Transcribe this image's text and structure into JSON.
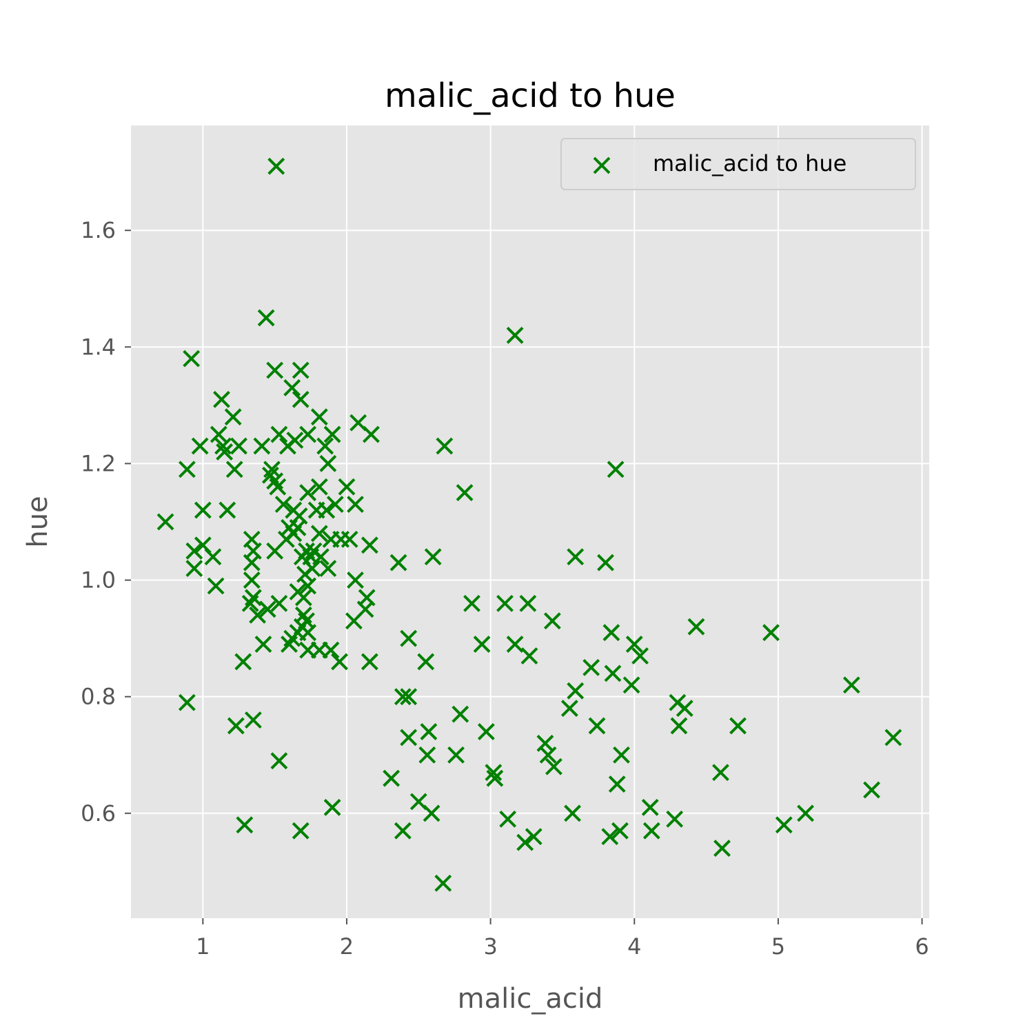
{
  "chart_data": {
    "type": "scatter",
    "title": "malic_acid to hue",
    "xlabel": "malic_acid",
    "ylabel": "hue",
    "xlim": [
      0.5,
      6.05
    ],
    "ylim": [
      0.42,
      1.78
    ],
    "xticks": [
      1,
      2,
      3,
      4,
      5,
      6
    ],
    "xtick_labels": [
      "1",
      "2",
      "3",
      "4",
      "5",
      "6"
    ],
    "yticks": [
      0.6,
      0.8,
      1.0,
      1.2,
      1.4,
      1.6
    ],
    "ytick_labels": [
      "0.6",
      "0.8",
      "1.0",
      "1.2",
      "1.4",
      "1.6"
    ],
    "grid": true,
    "legend_position": "top-right",
    "marker": "x",
    "series": [
      {
        "name": "malic_acid to hue",
        "color": "#008000",
        "points": [
          [
            1.51,
            1.71
          ],
          [
            1.44,
            1.45
          ],
          [
            3.17,
            1.42
          ],
          [
            0.92,
            1.38
          ],
          [
            1.5,
            1.36
          ],
          [
            1.68,
            1.36
          ],
          [
            1.62,
            1.33
          ],
          [
            1.13,
            1.31
          ],
          [
            1.68,
            1.31
          ],
          [
            1.21,
            1.28
          ],
          [
            1.81,
            1.28
          ],
          [
            2.08,
            1.27
          ],
          [
            1.11,
            1.25
          ],
          [
            1.53,
            1.25
          ],
          [
            1.73,
            1.25
          ],
          [
            1.9,
            1.25
          ],
          [
            2.17,
            1.25
          ],
          [
            0.98,
            1.23
          ],
          [
            1.14,
            1.23
          ],
          [
            1.25,
            1.23
          ],
          [
            1.41,
            1.23
          ],
          [
            1.59,
            1.23
          ],
          [
            1.64,
            1.24
          ],
          [
            1.85,
            1.23
          ],
          [
            2.68,
            1.23
          ],
          [
            1.15,
            1.22
          ],
          [
            0.89,
            1.19
          ],
          [
            1.22,
            1.19
          ],
          [
            1.48,
            1.19
          ],
          [
            1.87,
            1.2
          ],
          [
            3.87,
            1.19
          ],
          [
            1.47,
            1.18
          ],
          [
            1.5,
            1.17
          ],
          [
            1.52,
            1.16
          ],
          [
            1.81,
            1.16
          ],
          [
            2.0,
            1.16
          ],
          [
            2.82,
            1.15
          ],
          [
            1.73,
            1.15
          ],
          [
            1.56,
            1.13
          ],
          [
            1.63,
            1.12
          ],
          [
            1.79,
            1.12
          ],
          [
            1.92,
            1.13
          ],
          [
            2.06,
            1.13
          ],
          [
            0.74,
            1.1
          ],
          [
            1.0,
            1.12
          ],
          [
            1.17,
            1.12
          ],
          [
            1.67,
            1.11
          ],
          [
            1.86,
            1.12
          ],
          [
            1.6,
            1.09
          ],
          [
            1.63,
            1.08
          ],
          [
            1.66,
            1.09
          ],
          [
            1.81,
            1.08
          ],
          [
            1.34,
            1.07
          ],
          [
            1.96,
            1.07
          ],
          [
            1.89,
            1.07
          ],
          [
            2.02,
            1.07
          ],
          [
            1.58,
            1.07
          ],
          [
            0.94,
            1.05
          ],
          [
            1.0,
            1.06
          ],
          [
            1.35,
            1.05
          ],
          [
            1.5,
            1.05
          ],
          [
            1.72,
            1.05
          ],
          [
            1.77,
            1.05
          ],
          [
            2.16,
            1.06
          ],
          [
            1.07,
            1.04
          ],
          [
            1.69,
            1.04
          ],
          [
            1.75,
            1.04
          ],
          [
            1.82,
            1.04
          ],
          [
            0.94,
            1.02
          ],
          [
            1.34,
            1.03
          ],
          [
            1.76,
            1.02
          ],
          [
            1.87,
            1.02
          ],
          [
            2.36,
            1.03
          ],
          [
            2.6,
            1.04
          ],
          [
            3.59,
            1.04
          ],
          [
            3.8,
            1.03
          ],
          [
            1.34,
            1.0
          ],
          [
            1.71,
            1.01
          ],
          [
            2.06,
            1.0
          ],
          [
            1.09,
            0.99
          ],
          [
            1.73,
            0.99
          ],
          [
            1.66,
            0.98
          ],
          [
            1.35,
            0.97
          ],
          [
            1.7,
            0.97
          ],
          [
            2.14,
            0.97
          ],
          [
            1.33,
            0.96
          ],
          [
            1.45,
            0.95
          ],
          [
            1.53,
            0.96
          ],
          [
            2.13,
            0.95
          ],
          [
            2.87,
            0.96
          ],
          [
            3.1,
            0.96
          ],
          [
            3.26,
            0.96
          ],
          [
            1.38,
            0.94
          ],
          [
            1.7,
            0.94
          ],
          [
            1.72,
            0.93
          ],
          [
            2.05,
            0.93
          ],
          [
            3.43,
            0.93
          ],
          [
            1.69,
            0.92
          ],
          [
            4.43,
            0.92
          ],
          [
            1.66,
            0.91
          ],
          [
            1.73,
            0.91
          ],
          [
            3.84,
            0.91
          ],
          [
            4.95,
            0.91
          ],
          [
            1.62,
            0.9
          ],
          [
            2.43,
            0.9
          ],
          [
            1.42,
            0.89
          ],
          [
            1.6,
            0.89
          ],
          [
            2.94,
            0.89
          ],
          [
            3.17,
            0.89
          ],
          [
            4.0,
            0.89
          ],
          [
            1.73,
            0.88
          ],
          [
            1.81,
            0.88
          ],
          [
            1.89,
            0.88
          ],
          [
            3.27,
            0.87
          ],
          [
            4.04,
            0.87
          ],
          [
            1.28,
            0.86
          ],
          [
            1.95,
            0.86
          ],
          [
            2.16,
            0.86
          ],
          [
            2.55,
            0.86
          ],
          [
            3.7,
            0.85
          ],
          [
            3.85,
            0.84
          ],
          [
            3.98,
            0.82
          ],
          [
            5.51,
            0.82
          ],
          [
            3.59,
            0.81
          ],
          [
            2.39,
            0.8
          ],
          [
            2.43,
            0.8
          ],
          [
            0.89,
            0.79
          ],
          [
            4.3,
            0.79
          ],
          [
            3.55,
            0.78
          ],
          [
            4.35,
            0.78
          ],
          [
            2.79,
            0.77
          ],
          [
            1.35,
            0.76
          ],
          [
            1.23,
            0.75
          ],
          [
            3.74,
            0.75
          ],
          [
            4.31,
            0.75
          ],
          [
            4.72,
            0.75
          ],
          [
            2.57,
            0.74
          ],
          [
            2.97,
            0.74
          ],
          [
            2.43,
            0.73
          ],
          [
            5.8,
            0.73
          ],
          [
            3.38,
            0.72
          ],
          [
            2.56,
            0.7
          ],
          [
            2.76,
            0.7
          ],
          [
            3.4,
            0.7
          ],
          [
            3.91,
            0.7
          ],
          [
            1.53,
            0.69
          ],
          [
            3.44,
            0.68
          ],
          [
            3.02,
            0.67
          ],
          [
            3.03,
            0.66
          ],
          [
            4.6,
            0.67
          ],
          [
            2.31,
            0.66
          ],
          [
            3.88,
            0.65
          ],
          [
            5.65,
            0.64
          ],
          [
            2.5,
            0.62
          ],
          [
            1.9,
            0.61
          ],
          [
            4.11,
            0.61
          ],
          [
            2.59,
            0.6
          ],
          [
            3.57,
            0.6
          ],
          [
            5.19,
            0.6
          ],
          [
            3.12,
            0.59
          ],
          [
            4.28,
            0.59
          ],
          [
            1.29,
            0.58
          ],
          [
            5.04,
            0.58
          ],
          [
            1.68,
            0.57
          ],
          [
            2.39,
            0.57
          ],
          [
            3.9,
            0.57
          ],
          [
            4.12,
            0.57
          ],
          [
            3.3,
            0.56
          ],
          [
            3.83,
            0.56
          ],
          [
            3.24,
            0.55
          ],
          [
            4.61,
            0.54
          ],
          [
            2.67,
            0.48
          ]
        ]
      }
    ]
  }
}
